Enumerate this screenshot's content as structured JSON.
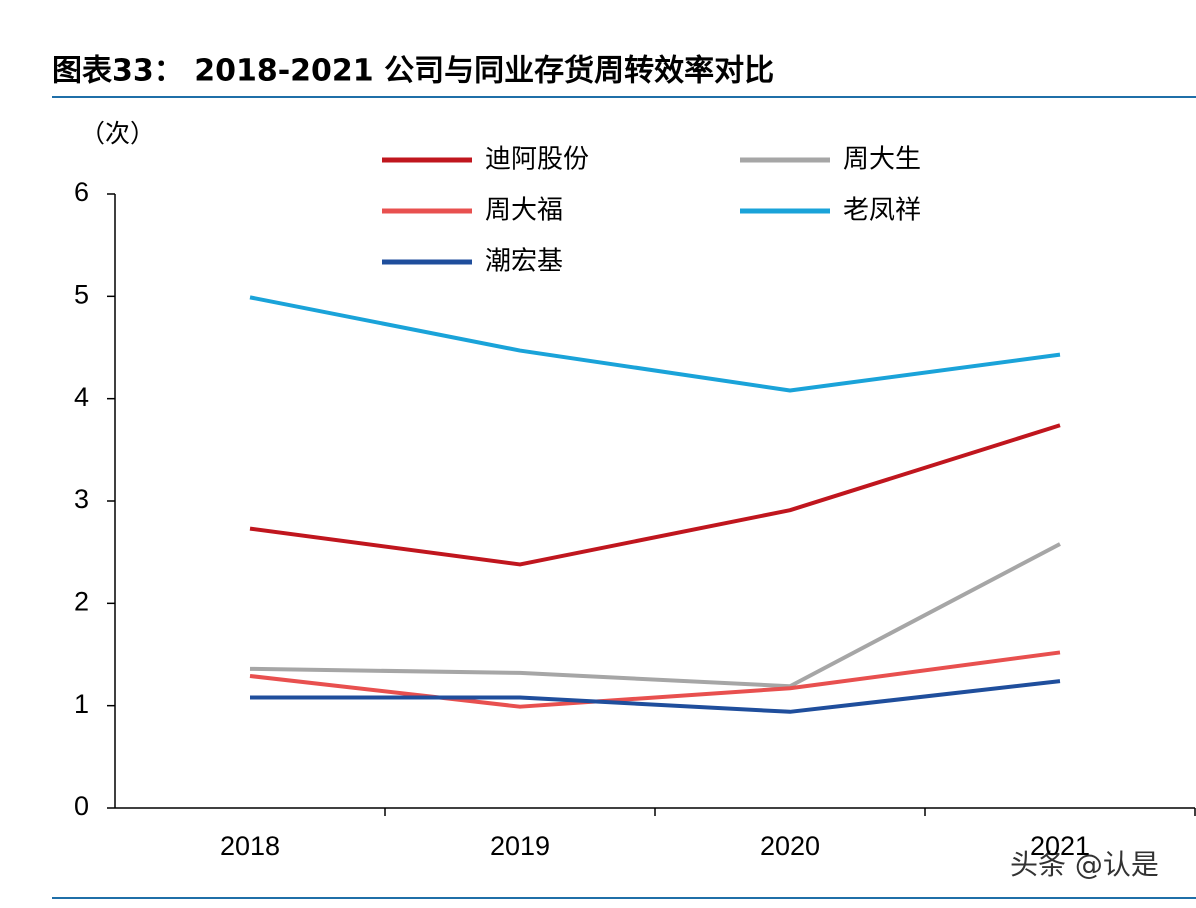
{
  "chart_data": {
    "type": "line",
    "title": "图表33： 2018-2021 公司与同业存货周转效率对比",
    "y_label": "（次）",
    "categories": [
      "2018",
      "2019",
      "2020",
      "2021"
    ],
    "series": [
      {
        "name": "迪阿股份",
        "color": "#c0161e",
        "values": [
          2.73,
          2.38,
          2.91,
          3.74
        ]
      },
      {
        "name": "周大生",
        "color": "#a6a6a6",
        "values": [
          1.36,
          1.32,
          1.19,
          2.58
        ]
      },
      {
        "name": "周大福",
        "color": "#e8504f",
        "values": [
          1.29,
          0.99,
          1.17,
          1.52
        ]
      },
      {
        "name": "老凤祥",
        "color": "#1aa3d9",
        "values": [
          4.99,
          4.47,
          4.08,
          4.43
        ]
      },
      {
        "name": "潮宏基",
        "color": "#1f4e9c",
        "values": [
          1.08,
          1.08,
          0.94,
          1.24
        ]
      }
    ],
    "ylim": [
      0,
      6
    ],
    "yticks": [
      0,
      1,
      2,
      3,
      4,
      5,
      6
    ],
    "watermark": "头条 @认是"
  }
}
